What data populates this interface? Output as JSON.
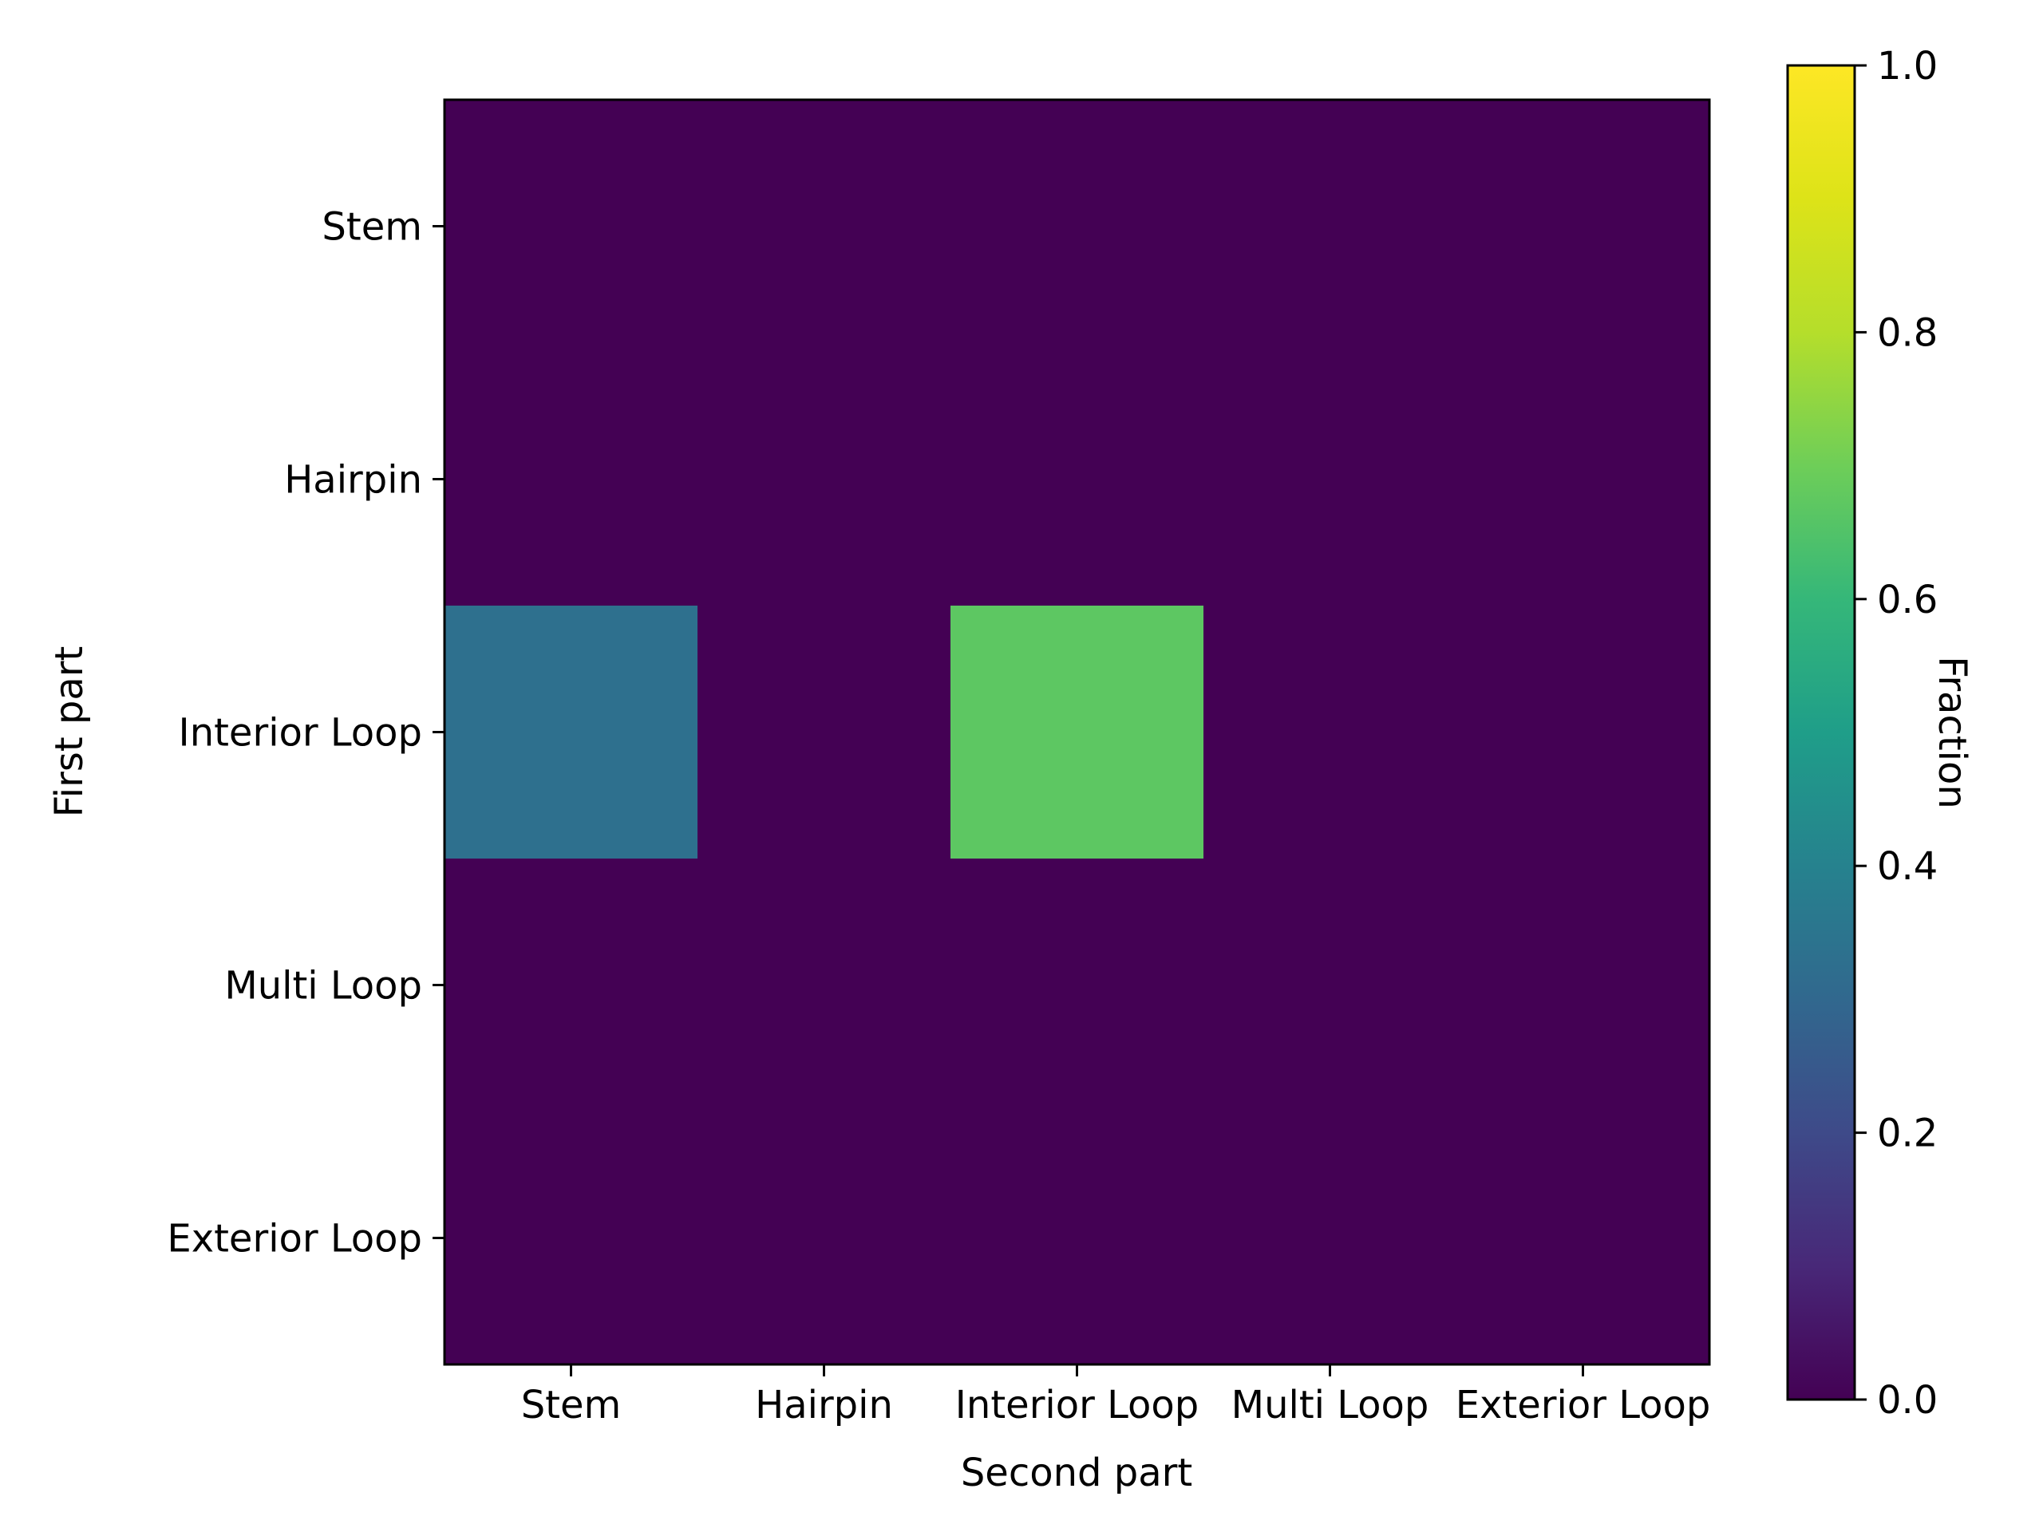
{
  "chart_data": {
    "type": "heatmap",
    "title": "",
    "xlabel": "Second part",
    "ylabel": "First part",
    "x_categories": [
      "Stem",
      "Hairpin",
      "Interior Loop",
      "Multi Loop",
      "Exterior Loop"
    ],
    "y_categories": [
      "Stem",
      "Hairpin",
      "Interior Loop",
      "Multi Loop",
      "Exterior Loop"
    ],
    "values": [
      [
        0.0,
        0.0,
        0.0,
        0.0,
        0.0
      ],
      [
        0.0,
        0.0,
        0.0,
        0.0,
        0.0
      ],
      [
        0.33,
        0.0,
        0.67,
        0.0,
        0.0
      ],
      [
        0.0,
        0.0,
        0.0,
        0.0,
        0.0
      ],
      [
        0.0,
        0.0,
        0.0,
        0.0,
        0.0
      ]
    ],
    "colormap": "viridis",
    "colorbar": {
      "label": "Fraction",
      "range": [
        0.0,
        1.0
      ],
      "ticks": [
        0.0,
        0.2,
        0.4,
        0.6,
        0.8,
        1.0
      ],
      "tick_labels": [
        "0.0",
        "0.2",
        "0.4",
        "0.6",
        "0.8",
        "1.0"
      ],
      "placement": "right"
    },
    "grid": false
  }
}
